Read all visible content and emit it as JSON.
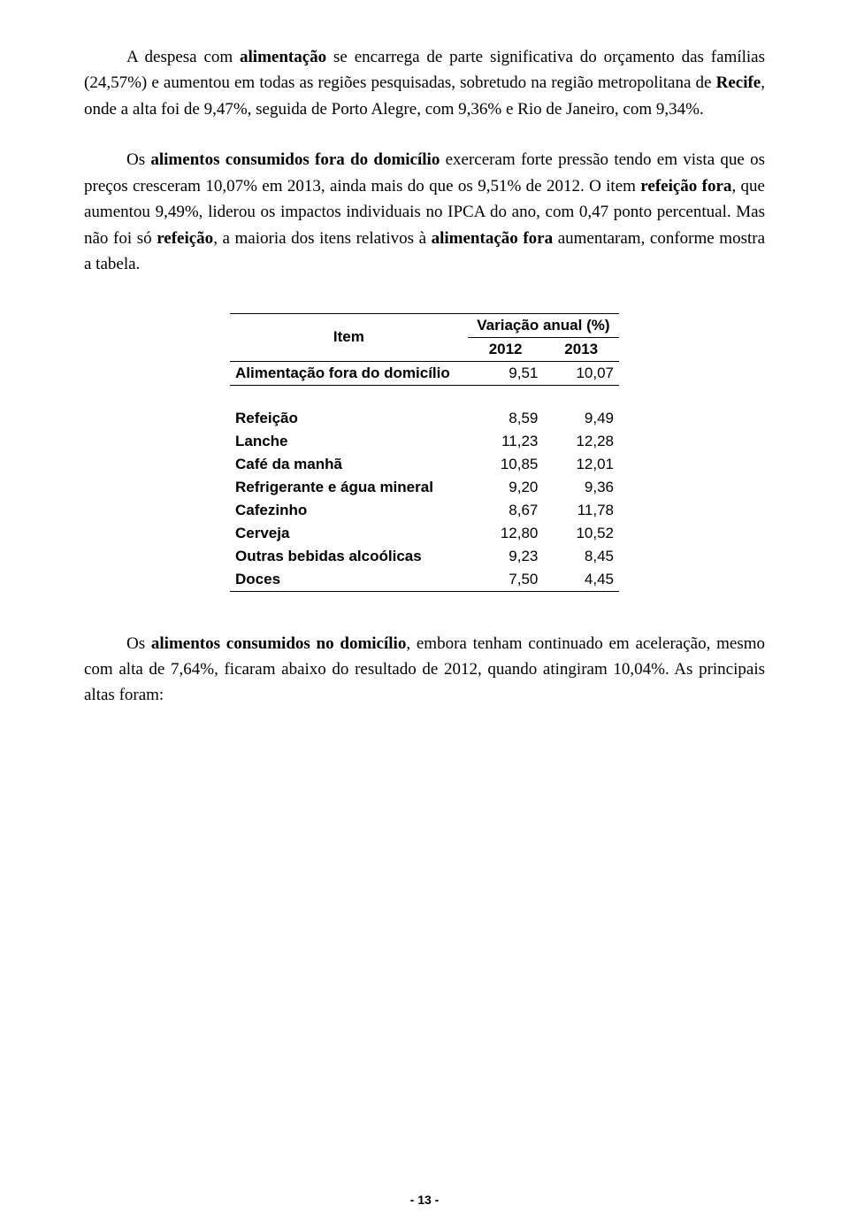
{
  "paragraphs": {
    "p1a": "A despesa com ",
    "p1b": "alimentação",
    "p1c": " se encarrega de parte significativa do orçamento das famílias (24,57%) e aumentou em todas as regiões pesquisadas, sobretudo na região metropolitana de ",
    "p1d": "Recife",
    "p1e": ", onde a alta foi de 9,47%, seguida de Porto Alegre, com 9,36% e Rio de Janeiro, com 9,34%.",
    "p2a": "Os ",
    "p2b": "alimentos consumidos fora do domicílio",
    "p2c": " exerceram forte pressão tendo em vista que os preços cresceram 10,07% em 2013, ainda mais do que os 9,51% de 2012. O item ",
    "p2d": "refeição fora",
    "p2e": ", que aumentou 9,49%, liderou os  impactos individuais no IPCA do ano, com 0,47 ponto percentual. Mas não foi só ",
    "p2f": "refeição",
    "p2g": ", a maioria dos itens relativos à ",
    "p2h": "alimentação fora",
    "p2i": " aumentaram, conforme mostra a tabela.",
    "p3a": "Os ",
    "p3b": "alimentos consumidos no domicílio",
    "p3c": ", embora tenham continuado em aceleração, mesmo com alta de 7,64%, ficaram abaixo do resultado de 2012, quando atingiram 10,04%. As principais altas foram:"
  },
  "table": {
    "header_item": "Item",
    "header_var": "Variação anual (%)",
    "year1": "2012",
    "year2": "2013",
    "rows": [
      {
        "name": "Alimentação fora do domicílio",
        "v1": "9,51",
        "v2": "10,07"
      },
      {
        "name": "Refeição",
        "v1": "8,59",
        "v2": "9,49"
      },
      {
        "name": "Lanche",
        "v1": "11,23",
        "v2": "12,28"
      },
      {
        "name": "Café da manhã",
        "v1": "10,85",
        "v2": "12,01"
      },
      {
        "name": "Refrigerante e água mineral",
        "v1": "9,20",
        "v2": "9,36"
      },
      {
        "name": "Cafezinho",
        "v1": "8,67",
        "v2": "11,78"
      },
      {
        "name": "Cerveja",
        "v1": "12,80",
        "v2": "10,52"
      },
      {
        "name": "Outras bebidas alcoólicas",
        "v1": "9,23",
        "v2": "8,45"
      },
      {
        "name": "Doces",
        "v1": "7,50",
        "v2": "4,45"
      }
    ]
  },
  "page_number": "- 13 -"
}
